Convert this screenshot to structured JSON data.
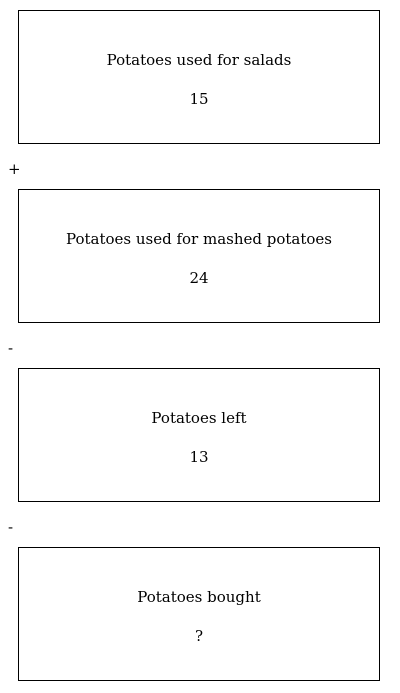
{
  "boxes": [
    {
      "label": "Potatoes used for salads",
      "value": "15"
    },
    {
      "label": "Potatoes used for mashed potatoes",
      "value": "24"
    },
    {
      "label": "Potatoes left",
      "value": "13"
    },
    {
      "label": "Potatoes bought",
      "value": "?"
    }
  ],
  "operators": [
    "+",
    "-",
    "-"
  ]
}
